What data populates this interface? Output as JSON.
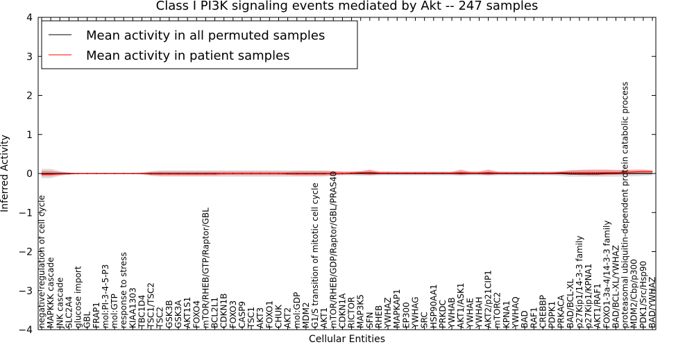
{
  "chart_data": {
    "type": "line",
    "title": "Class I PI3K signaling events mediated by Akt -- 247 samples",
    "xlabel": "Cellular Entities",
    "ylabel": "Inferred Activity",
    "ylim": [
      -4,
      4
    ],
    "yticks": [
      "4",
      "3",
      "2",
      "1",
      "0",
      "−1",
      "−2",
      "−3",
      "−4"
    ],
    "legend": {
      "position": "top-left",
      "entries": [
        {
          "label": "Mean activity in all permuted samples",
          "color": "#000000"
        },
        {
          "label": "Mean activity in patient samples",
          "color": "#ff0000"
        }
      ]
    },
    "categories": [
      "negative regulation of cell cycle",
      "MAPKKK cascade",
      "JNK cascade",
      "SLC2A4",
      "glucose import",
      "GBL",
      "FRAP1",
      "mol:PI-3-4-5-P3",
      "mol:GTP",
      "response to stress",
      "KIAA1303",
      "TBC1D4",
      "TSC1/TSC2",
      "TSC2",
      "GSK3B",
      "GSK3A",
      "AKT1S1",
      "FOXO4",
      "mTOR/RHEB/GTP/Raptor/GBL",
      "BCL2L1",
      "CDKN1B",
      "FOXO3",
      "CASP9",
      "TSC1",
      "AKT3",
      "FOXO1",
      "CHUK",
      "AKT2",
      "mol:GDP",
      "MDM2",
      "G1/S transition of mitotic cell cycle",
      "AKT1",
      "mTOR/RHEB/GDP/Raptor/GBL/PRAS40",
      "CDKN1A",
      "RICTOR",
      "MAP3K5",
      "SFN",
      "RHEB",
      "YWHAZ",
      "MAPKAP1",
      "EP300",
      "YWHAG",
      "SRC",
      "HSP90AA1",
      "PRKDC",
      "YWHAB",
      "AKT1/ASK1",
      "YWHAE",
      "YWHAH",
      "AKT2/p21CIP1",
      "mTORC2",
      "KPNA1",
      "YWHAQ",
      "BAD",
      "RAF1",
      "CREBBP",
      "PDPK1",
      "PRKACA",
      "BAD/BCL-XL",
      "p27Kip1/14-3-3 family",
      "p27Kip1/KPNA1",
      "AKT1/RAF1",
      "FOXO1-3a-4/14-3-3 family",
      "BAD/BCL-XL/YWHAZ",
      "proteasomal ubiquitin-dependent protein catabolic process",
      "MDM2/Cbp/p300",
      "PDK1/Src/Hsp90",
      "BAD/YWHAZ"
    ],
    "series": [
      {
        "name": "Mean activity in patient samples",
        "color": "#ff0000",
        "values": [
          -0.02,
          -0.02,
          -0.01,
          -0.01,
          0,
          0,
          0,
          0,
          0,
          0,
          0,
          0,
          -0.01,
          -0.01,
          -0.01,
          -0.01,
          -0.01,
          -0.01,
          -0.01,
          -0.01,
          0,
          0,
          0,
          0,
          0,
          0,
          0,
          -0.01,
          -0.01,
          -0.01,
          -0.01,
          -0.01,
          0,
          0,
          0.01,
          0.02,
          0.03,
          0.01,
          0.01,
          0.01,
          0.01,
          0.01,
          0.01,
          0.01,
          0.01,
          0.01,
          0.02,
          0.01,
          0.01,
          0.02,
          0.01,
          0.01,
          0.01,
          0.01,
          0.01,
          0.01,
          0.01,
          0.02,
          0.02,
          0.02,
          0.02,
          0.02,
          0.02,
          0.02,
          0.03,
          0.04,
          0.05,
          0.05
        ],
        "band_upper": [
          0.07,
          0.07,
          0.04,
          0.02,
          0.01,
          0.01,
          0.01,
          0.01,
          0.01,
          0.01,
          0.01,
          0.02,
          0.04,
          0.05,
          0.05,
          0.05,
          0.05,
          0.05,
          0.05,
          0.05,
          0.05,
          0.05,
          0.05,
          0.05,
          0.05,
          0.05,
          0.05,
          0.05,
          0.06,
          0.06,
          0.06,
          0.06,
          0.06,
          0.05,
          0.05,
          0.06,
          0.1,
          0.05,
          0.05,
          0.04,
          0.04,
          0.04,
          0.04,
          0.04,
          0.04,
          0.04,
          0.1,
          0.05,
          0.05,
          0.1,
          0.05,
          0.04,
          0.04,
          0.04,
          0.04,
          0.04,
          0.04,
          0.05,
          0.08,
          0.09,
          0.1,
          0.1,
          0.1,
          0.09,
          0.09,
          0.1,
          0.1,
          0.08
        ],
        "band_lower": [
          -0.07,
          -0.07,
          -0.04,
          -0.02,
          -0.01,
          -0.01,
          -0.01,
          -0.01,
          -0.01,
          -0.01,
          -0.01,
          -0.02,
          -0.04,
          -0.05,
          -0.05,
          -0.05,
          -0.05,
          -0.05,
          -0.05,
          -0.05,
          -0.04,
          -0.04,
          -0.04,
          -0.04,
          -0.04,
          -0.04,
          -0.04,
          -0.04,
          -0.05,
          -0.05,
          -0.05,
          -0.05,
          -0.04,
          -0.03,
          -0.02,
          -0.02,
          -0.04,
          -0.02,
          -0.02,
          -0.02,
          -0.02,
          -0.02,
          -0.02,
          -0.02,
          -0.02,
          -0.02,
          -0.04,
          -0.02,
          -0.02,
          -0.04,
          -0.02,
          -0.02,
          -0.02,
          -0.02,
          -0.02,
          -0.02,
          -0.02,
          -0.02,
          -0.03,
          -0.04,
          -0.05,
          -0.05,
          -0.04,
          -0.03,
          -0.02,
          -0.01,
          0,
          0.01
        ]
      },
      {
        "name": "Mean activity in all permuted samples",
        "color": "#000000",
        "values": [
          0,
          0,
          0,
          0,
          0,
          0,
          0,
          0,
          0,
          0,
          0,
          0,
          0,
          0,
          0,
          0,
          0,
          0,
          0,
          0,
          0,
          0,
          0,
          0,
          0,
          0,
          0,
          0,
          0,
          0,
          0,
          0,
          0,
          0,
          0,
          0,
          0,
          0,
          0,
          0,
          0,
          0,
          0,
          0,
          0,
          0,
          0,
          0,
          0,
          0,
          0,
          0,
          0,
          0,
          0,
          0,
          0,
          0,
          -0.01,
          -0.01,
          -0.01,
          -0.01,
          0,
          0,
          0,
          0,
          0,
          0
        ],
        "band_upper": [
          0.12,
          0.12,
          0.06,
          0.02,
          0.01,
          0.01,
          0.01,
          0.01,
          0.01,
          0.01,
          0.01,
          0.02,
          0.06,
          0.08,
          0.08,
          0.08,
          0.08,
          0.08,
          0.08,
          0.08,
          0.08,
          0.08,
          0.08,
          0.08,
          0.08,
          0.08,
          0.08,
          0.08,
          0.08,
          0.08,
          0.08,
          0.08,
          0.06,
          0.05,
          0.05,
          0.06,
          0.06,
          0.05,
          0.05,
          0.05,
          0.05,
          0.05,
          0.05,
          0.05,
          0.05,
          0.05,
          0.06,
          0.05,
          0.05,
          0.06,
          0.05,
          0.05,
          0.05,
          0.05,
          0.05,
          0.05,
          0.05,
          0.06,
          0.08,
          0.08,
          0.08,
          0.08,
          0.08,
          0.08,
          0.08,
          0.07,
          0.06,
          0.05
        ],
        "band_lower": [
          -0.12,
          -0.12,
          -0.06,
          -0.02,
          -0.01,
          -0.01,
          -0.01,
          -0.01,
          -0.01,
          -0.01,
          -0.01,
          -0.02,
          -0.06,
          -0.08,
          -0.08,
          -0.08,
          -0.08,
          -0.08,
          -0.08,
          -0.08,
          -0.08,
          -0.08,
          -0.08,
          -0.08,
          -0.08,
          -0.08,
          -0.08,
          -0.08,
          -0.08,
          -0.08,
          -0.08,
          -0.08,
          -0.06,
          -0.05,
          -0.05,
          -0.06,
          -0.06,
          -0.05,
          -0.05,
          -0.05,
          -0.05,
          -0.05,
          -0.05,
          -0.05,
          -0.05,
          -0.05,
          -0.06,
          -0.05,
          -0.05,
          -0.06,
          -0.05,
          -0.05,
          -0.05,
          -0.05,
          -0.05,
          -0.05,
          -0.05,
          -0.06,
          -0.08,
          -0.08,
          -0.08,
          -0.08,
          -0.08,
          -0.08,
          -0.08,
          -0.07,
          -0.06,
          -0.05
        ]
      }
    ]
  }
}
